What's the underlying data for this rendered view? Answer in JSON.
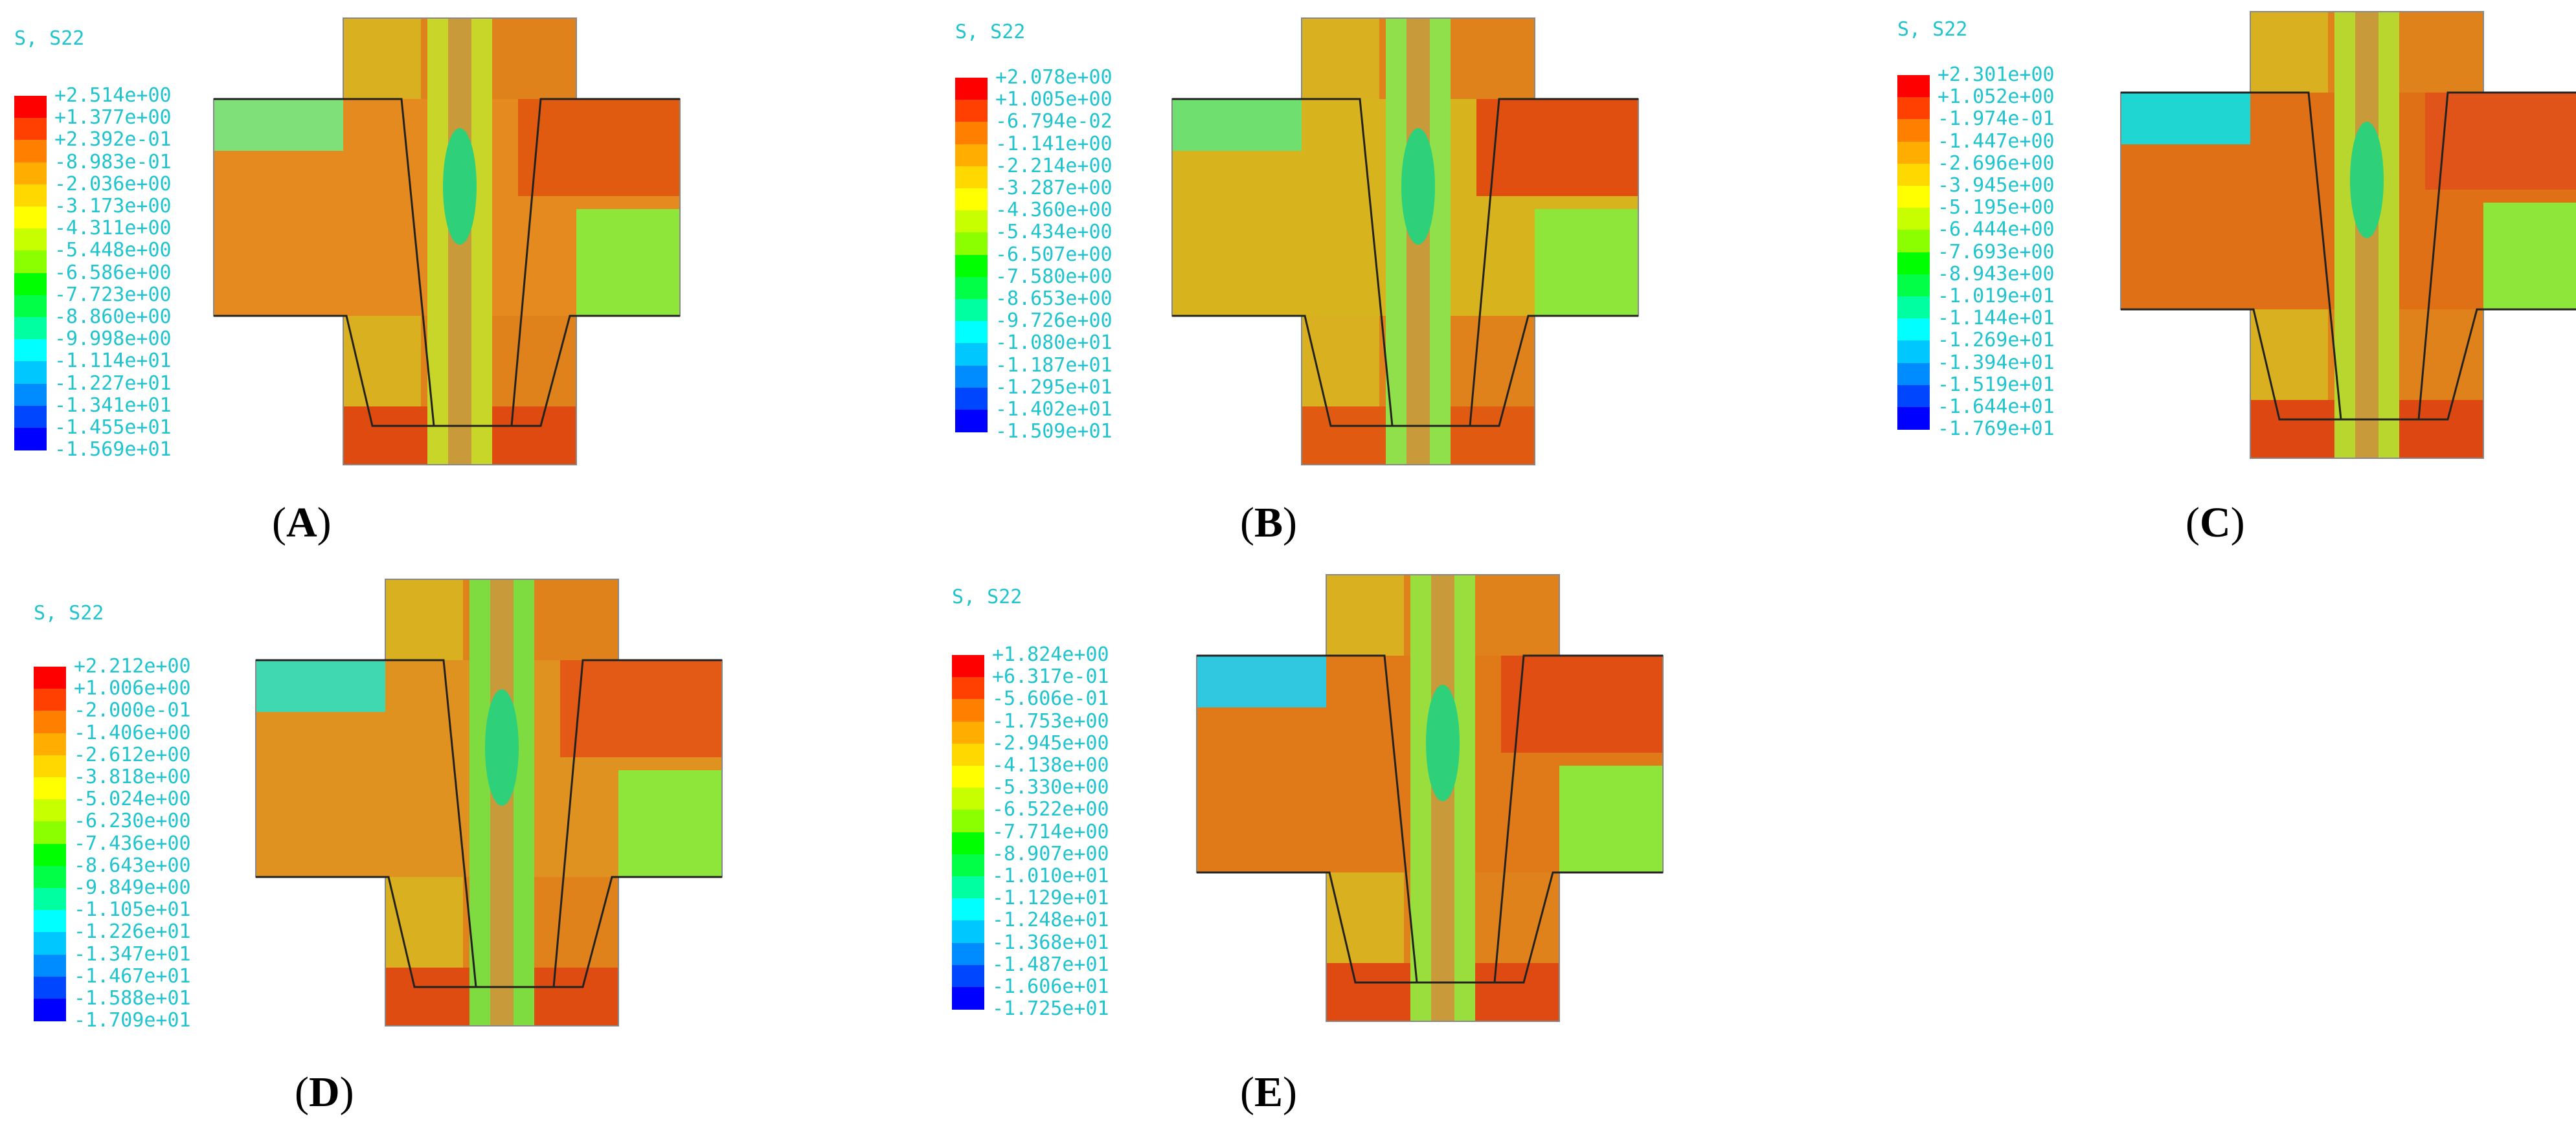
{
  "colors": {
    "legend_text": "#1fc4cf",
    "scale": [
      "#ff0000",
      "#ff4000",
      "#ff7f00",
      "#ffae00",
      "#ffd800",
      "#ffff00",
      "#c8ff00",
      "#8bff00",
      "#46ff00",
      "#00ff00",
      "#00ff46",
      "#00ffa0",
      "#00ffff",
      "#00c8ff",
      "#008bff",
      "#0046ff",
      "#0000ff"
    ]
  },
  "panels": [
    {
      "id": "A",
      "header": "S, S22",
      "caption": "A",
      "legend_values": [
        "+2.514e+00",
        "+1.377e+00",
        "+2.392e-01",
        "-8.983e-01",
        "-2.036e+00",
        "-3.173e+00",
        "-4.311e+00",
        "-5.448e+00",
        "-6.586e+00",
        "-7.723e+00",
        "-8.860e+00",
        "-9.998e+00",
        "-1.114e+01",
        "-1.227e+01",
        "-1.341e+01",
        "-1.455e+01",
        "-1.569e+01"
      ]
    },
    {
      "id": "B",
      "header": "S, S22",
      "caption": "B",
      "legend_values": [
        "+2.078e+00",
        "+1.005e+00",
        "-6.794e-02",
        "-1.141e+00",
        "-2.214e+00",
        "-3.287e+00",
        "-4.360e+00",
        "-5.434e+00",
        "-6.507e+00",
        "-7.580e+00",
        "-8.653e+00",
        "-9.726e+00",
        "-1.080e+01",
        "-1.187e+01",
        "-1.295e+01",
        "-1.402e+01",
        "-1.509e+01"
      ]
    },
    {
      "id": "C",
      "header": "S, S22",
      "caption": "C",
      "legend_values": [
        "+2.301e+00",
        "+1.052e+00",
        "-1.974e-01",
        "-1.447e+00",
        "-2.696e+00",
        "-3.945e+00",
        "-5.195e+00",
        "-6.444e+00",
        "-7.693e+00",
        "-8.943e+00",
        "-1.019e+01",
        "-1.144e+01",
        "-1.269e+01",
        "-1.394e+01",
        "-1.519e+01",
        "-1.644e+01",
        "-1.769e+01"
      ]
    },
    {
      "id": "D",
      "header": "S, S22",
      "caption": "D",
      "legend_values": [
        "+2.212e+00",
        "+1.006e+00",
        "-2.000e-01",
        "-1.406e+00",
        "-2.612e+00",
        "-3.818e+00",
        "-5.024e+00",
        "-6.230e+00",
        "-7.436e+00",
        "-8.643e+00",
        "-9.849e+00",
        "-1.105e+01",
        "-1.226e+01",
        "-1.347e+01",
        "-1.467e+01",
        "-1.588e+01",
        "-1.709e+01"
      ]
    },
    {
      "id": "E",
      "header": "S, S22",
      "caption": "E",
      "legend_values": [
        "+1.824e+00",
        "+6.317e-01",
        "-5.606e-01",
        "-1.753e+00",
        "-2.945e+00",
        "-4.138e+00",
        "-5.330e+00",
        "-6.522e+00",
        "-7.714e+00",
        "-8.907e+00",
        "-1.010e+01",
        "-1.129e+01",
        "-1.248e+01",
        "-1.368e+01",
        "-1.487e+01",
        "-1.606e+01",
        "-1.725e+01"
      ]
    }
  ]
}
